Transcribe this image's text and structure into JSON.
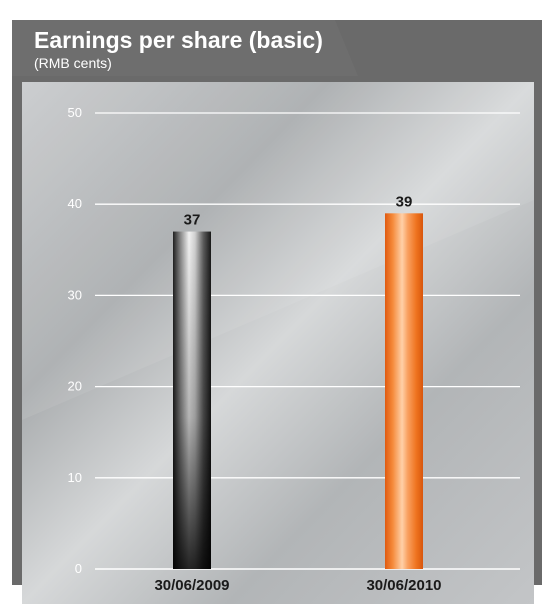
{
  "chart_data": {
    "type": "bar",
    "title": "Earnings per share (basic)",
    "subtitle": "(RMB cents)",
    "categories": [
      "30/06/2009",
      "30/06/2010"
    ],
    "values": [
      37,
      39
    ],
    "data_labels": [
      "37",
      "39"
    ],
    "ylim": [
      0,
      50
    ],
    "yticks": [
      0,
      10,
      20,
      30,
      40,
      50
    ],
    "ytick_labels": [
      "0",
      "10",
      "20",
      "30",
      "40",
      "50"
    ],
    "grid": true,
    "colors": {
      "bar_1": "#2a2a2a",
      "bar_2": "#f07a20",
      "header_bg": "#6e6e6e",
      "panel_bg": "#b9bcbe",
      "grid_line": "#ffffff"
    }
  }
}
